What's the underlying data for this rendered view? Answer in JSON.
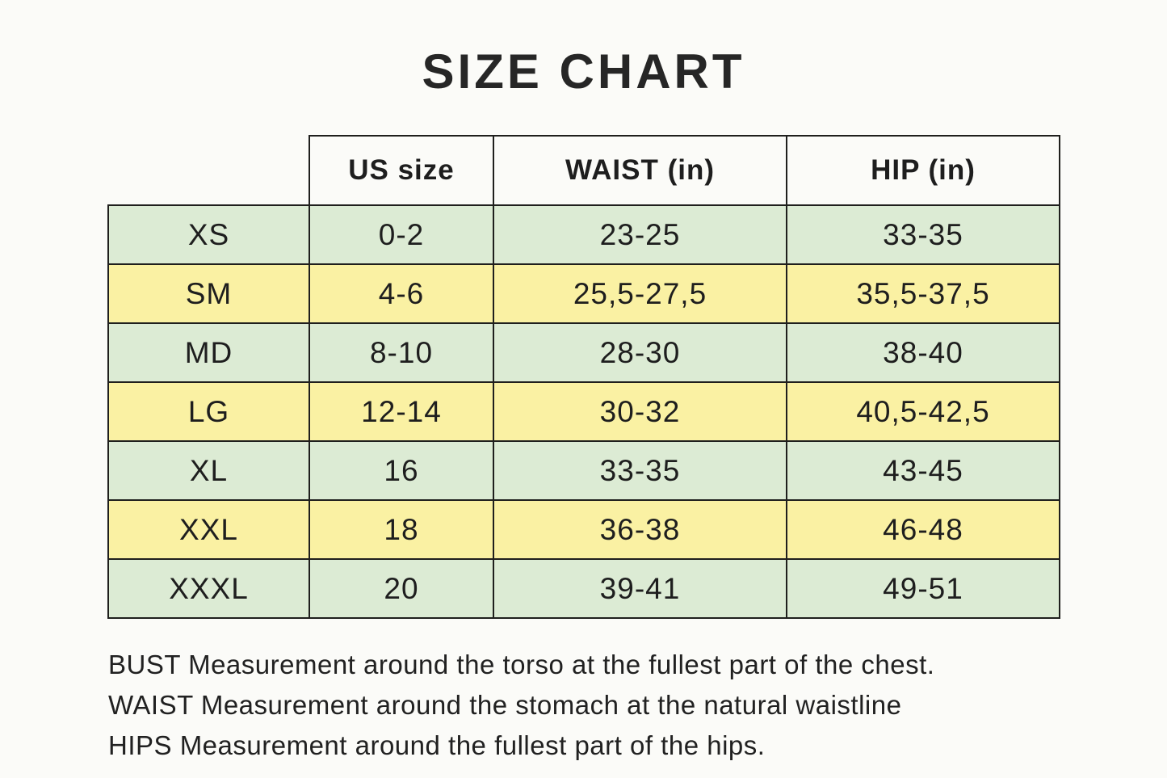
{
  "chart_data": {
    "type": "table",
    "title": "SIZE CHART",
    "columns": [
      "",
      "US size",
      "WAIST (in)",
      "HIP (in)"
    ],
    "rows": [
      [
        "XS",
        "0-2",
        "23-25",
        "33-35"
      ],
      [
        "SM",
        "4-6",
        "25,5-27,5",
        "35,5-37,5"
      ],
      [
        "MD",
        "8-10",
        "28-30",
        "38-40"
      ],
      [
        "LG",
        "12-14",
        "30-32",
        "40,5-42,5"
      ],
      [
        "XL",
        "16",
        "33-35",
        "43-45"
      ],
      [
        "XXL",
        "18",
        "36-38",
        "46-48"
      ],
      [
        "XXXL",
        "20",
        "39-41",
        "49-51"
      ]
    ],
    "row_stripe_colors": [
      "#dcebd4",
      "#faf1a3"
    ],
    "border_color": "#1f1f1d",
    "background_color": "#fbfbf8",
    "notes": [
      "BUST Measurement around the torso at the fullest part of the chest.",
      "WAIST Measurement around the stomach at the natural waistline",
      "HIPS Measurement around the fullest part of the hips."
    ]
  }
}
